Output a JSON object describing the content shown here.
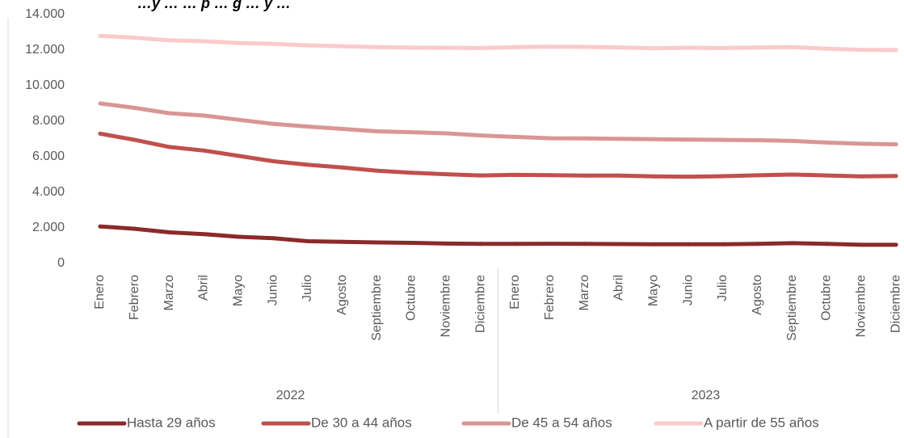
{
  "chart_data": {
    "type": "line",
    "title": "…y … … p … g … y …",
    "categories": [
      "Enero",
      "Febrero",
      "Marzo",
      "Abril",
      "Mayo",
      "Junio",
      "Julio",
      "Agosto",
      "Septiembre",
      "Octubre",
      "Noviembre",
      "Diciembre",
      "Enero",
      "Febrero",
      "Marzo",
      "Abril",
      "Mayo",
      "Junio",
      "Julio",
      "Agosto",
      "Septiembre",
      "Octubre",
      "Noviembre",
      "Diciembre"
    ],
    "groups": [
      {
        "label": "2022",
        "start": 0,
        "end": 11
      },
      {
        "label": "2023",
        "start": 12,
        "end": 23
      }
    ],
    "ylim": [
      0,
      14000
    ],
    "yticks": [
      0,
      2000,
      4000,
      6000,
      8000,
      10000,
      12000,
      14000
    ],
    "ytick_labels": [
      "0",
      "2.000",
      "4.000",
      "6.000",
      "8.000",
      "10.000",
      "12.000",
      "14.000"
    ],
    "grid": false,
    "legend_position": "bottom",
    "series": [
      {
        "name": "Hasta 29 años",
        "color": "#8B2A2A",
        "values": [
          2080,
          1950,
          1750,
          1650,
          1500,
          1420,
          1250,
          1220,
          1180,
          1160,
          1120,
          1100,
          1100,
          1110,
          1100,
          1090,
          1080,
          1080,
          1080,
          1100,
          1140,
          1100,
          1050,
          1050
        ]
      },
      {
        "name": "De 30 a 44 años",
        "color": "#C0504D",
        "values": [
          7300,
          6950,
          6550,
          6350,
          6050,
          5750,
          5550,
          5400,
          5220,
          5100,
          5020,
          4950,
          4980,
          4970,
          4940,
          4940,
          4900,
          4880,
          4910,
          4960,
          5000,
          4950,
          4900,
          4920
        ]
      },
      {
        "name": "De 45 a 54 años",
        "color": "#D99694",
        "values": [
          9000,
          8750,
          8450,
          8320,
          8080,
          7850,
          7700,
          7570,
          7430,
          7380,
          7320,
          7200,
          7120,
          7040,
          7030,
          7010,
          6990,
          6970,
          6950,
          6930,
          6890,
          6800,
          6730,
          6700
        ]
      },
      {
        "name": "A partir de 55 años",
        "color": "#FBCACA",
        "values": [
          12800,
          12700,
          12550,
          12500,
          12400,
          12350,
          12270,
          12220,
          12170,
          12140,
          12130,
          12120,
          12170,
          12190,
          12180,
          12150,
          12110,
          12130,
          12120,
          12150,
          12170,
          12080,
          12020,
          12000
        ]
      }
    ]
  }
}
